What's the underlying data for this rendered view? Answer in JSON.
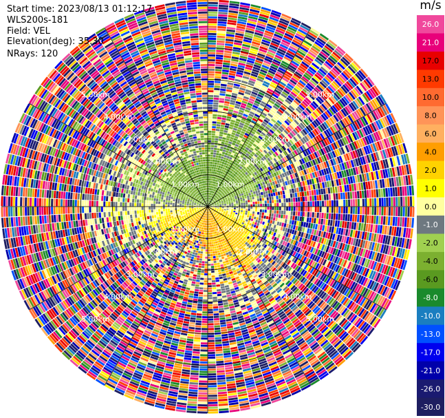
{
  "header": {
    "start_time": "Start time: 2023/08/13 01:12:17",
    "instrument": "WLS200s-181",
    "field": "Field: VEL",
    "elevation": "Elevation(deg): 35.30",
    "nrays": "NRays: 120"
  },
  "colorbar": {
    "unit": "m/s",
    "ticks": [
      "26.0",
      "21.0",
      "17.0",
      "13.0",
      "10.0",
      "8.0",
      "6.0",
      "4.0",
      "2.0",
      "1.0",
      "0.0",
      "-1.0",
      "-2.0",
      "-4.0",
      "-6.0",
      "-8.0",
      "-10.0",
      "-13.0",
      "-17.0",
      "-21.0",
      "-26.0",
      "-30.0"
    ],
    "colors": [
      "#f0489c",
      "#e8007a",
      "#e80000",
      "#ff3a00",
      "#ff6a30",
      "#ff9458",
      "#ffb060",
      "#ff9e00",
      "#ffd200",
      "#ffff00",
      "#ffffa0",
      "#6e7880",
      "#a0d050",
      "#7cb030",
      "#5a9a20",
      "#1a8a2c",
      "#1a7ec0",
      "#0050ff",
      "#0000ee",
      "#0000aa",
      "#1a1a70",
      "#1e1e60"
    ]
  },
  "chart_data": {
    "type": "heatmap",
    "projection": "polar PPI (azimuth x range)",
    "field": "VEL",
    "units": "m/s",
    "nrays": 120,
    "elevation_deg": 35.3,
    "range_rings_km": [
      1.0,
      2.0,
      3.0,
      4.0,
      5.0
    ],
    "range_ring_labels": [
      "1.00km",
      "2.00km",
      "3.00km",
      "4.00km",
      "5.00km"
    ],
    "max_range_km": 6.5,
    "value_range": [
      -30,
      30
    ],
    "pattern": {
      "northern_half_near_range": "green (-2 to -8 m/s)",
      "southern_half_near_range": "yellow/orange (1 to 8 m/s)",
      "far_range": "noise, full colour range"
    }
  }
}
